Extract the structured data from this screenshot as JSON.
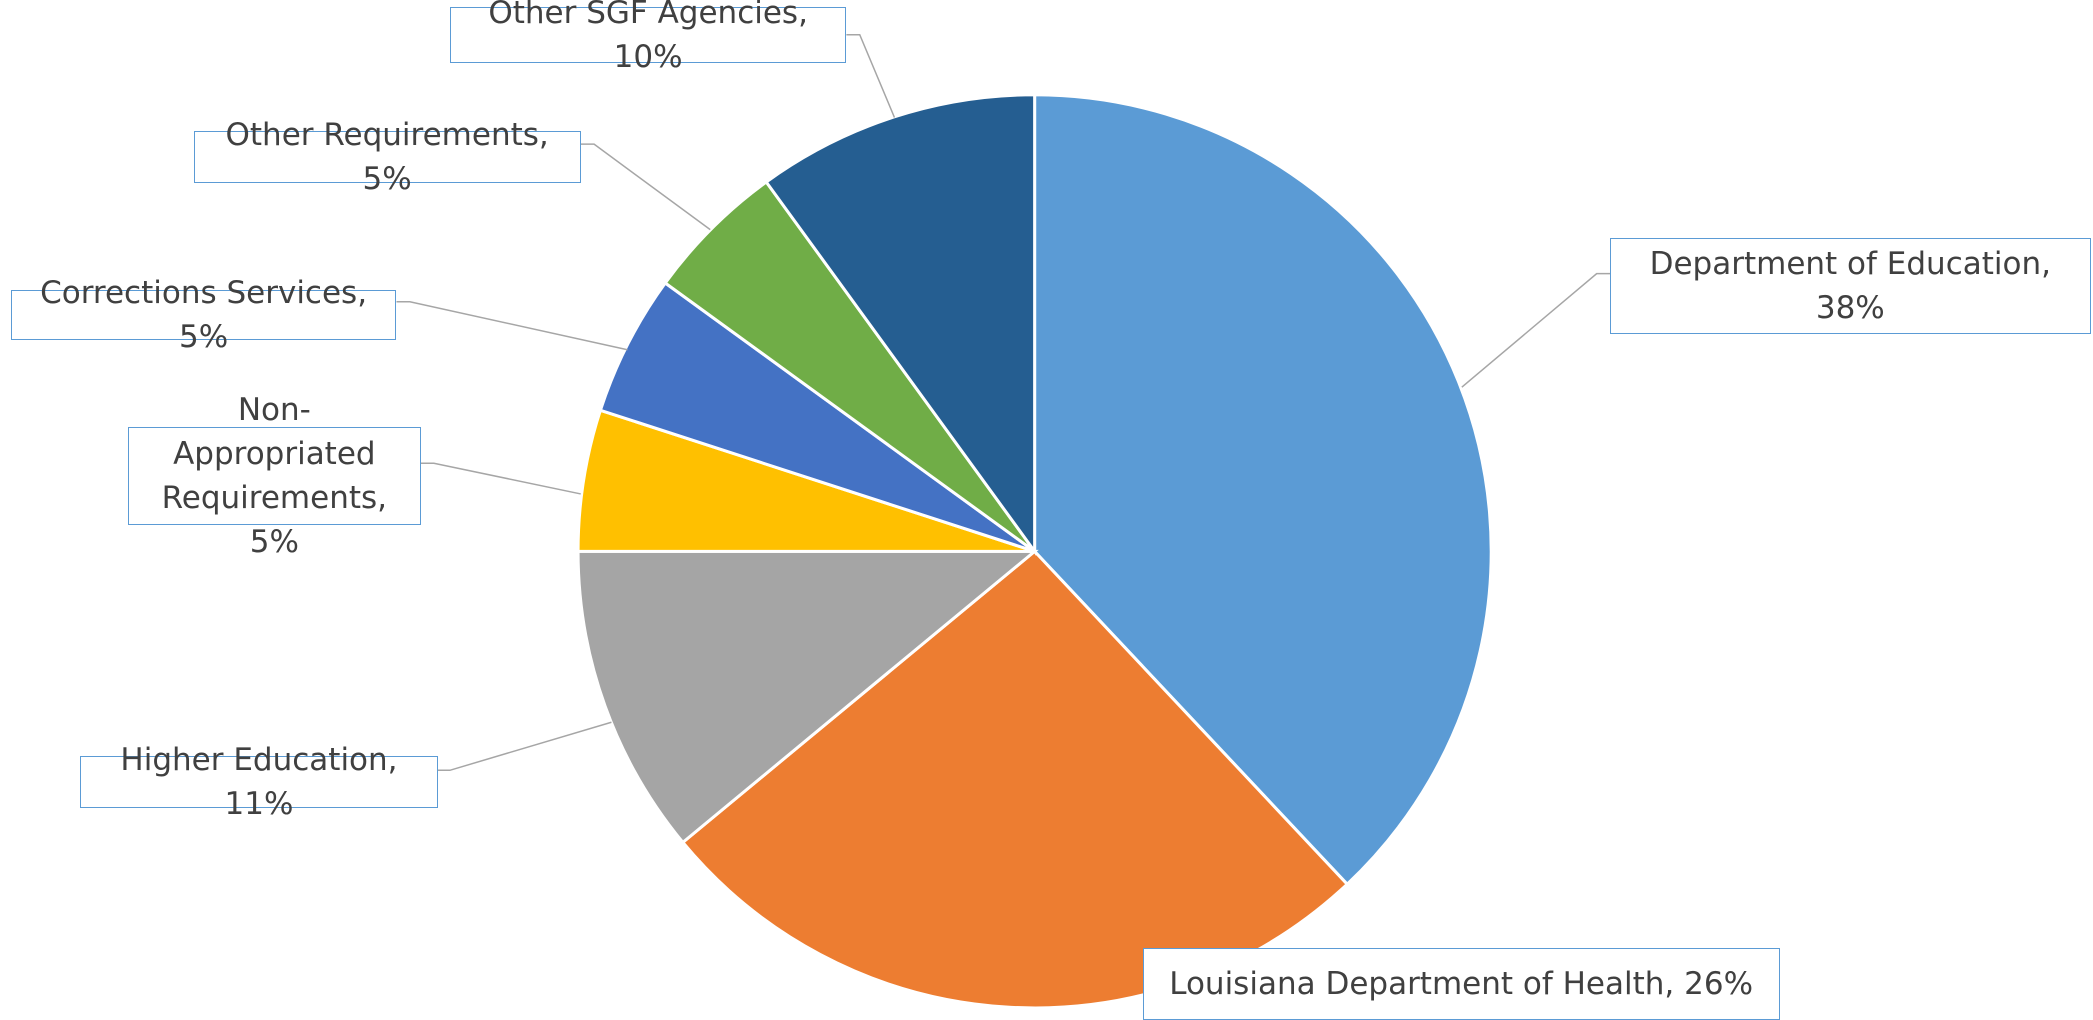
{
  "chart_data": {
    "type": "pie",
    "categories": [
      "Department of Education",
      "Louisiana Department of Health",
      "Higher Education",
      "Non-Appropriated Requirements",
      "Corrections Services",
      "Other Requirements",
      "Other SGF Agencies"
    ],
    "values": [
      38,
      26,
      11,
      5,
      5,
      5,
      10
    ],
    "value_labels": [
      "Department of Education, 38%",
      "Louisiana Department of Health, 26%",
      "Higher Education, 11%",
      "Non-Appropriated Requirements, 5%",
      "Corrections Services, 5%",
      "Other Requirements, 5%",
      "Other SGF Agencies, 10%"
    ],
    "colors": [
      "#5b9bd5",
      "#ed7d31",
      "#a5a5a5",
      "#ffc000",
      "#4472c4",
      "#70ad47",
      "#255e91"
    ],
    "start_angle": 0,
    "direction": "clockwise"
  }
}
